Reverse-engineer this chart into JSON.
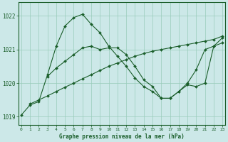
{
  "title": "Graphe pression niveau de la mer (hPa)",
  "background_color": "#cce8e8",
  "plot_bg_color": "#cce8e8",
  "grid_color": "#99ccbb",
  "line_color": "#1a5e2a",
  "marker_color": "#1a5e2a",
  "ylim": [
    1018.75,
    1022.4
  ],
  "xlim": [
    -0.3,
    23.3
  ],
  "yticks": [
    1019,
    1020,
    1021,
    1022
  ],
  "xticks": [
    0,
    1,
    2,
    3,
    4,
    5,
    6,
    7,
    8,
    9,
    10,
    11,
    12,
    13,
    14,
    15,
    16,
    17,
    18,
    19,
    20,
    21,
    22,
    23
  ],
  "series": [
    {
      "x": [
        0,
        1,
        2,
        3,
        4,
        5,
        6,
        7,
        8,
        9,
        10,
        11,
        12,
        13,
        14,
        15,
        16,
        17,
        18,
        19,
        20,
        21,
        22,
        23
      ],
      "y": [
        1019.05,
        1019.35,
        1019.45,
        1020.25,
        1021.1,
        1021.7,
        1021.95,
        1022.05,
        1021.75,
        1021.5,
        1021.1,
        1020.8,
        1020.5,
        1020.15,
        1019.9,
        1019.75,
        1019.55,
        1019.55,
        1019.75,
        1020.0,
        1020.4,
        1021.0,
        1021.1,
        1021.35
      ]
    },
    {
      "x": [
        1,
        2,
        3,
        4,
        5,
        6,
        7,
        8,
        9,
        10,
        11,
        12,
        13,
        14,
        15,
        16,
        17,
        18,
        19,
        20,
        21,
        22,
        23
      ],
      "y": [
        1019.38,
        1019.5,
        1019.62,
        1019.75,
        1019.88,
        1020.0,
        1020.13,
        1020.25,
        1020.38,
        1020.5,
        1020.6,
        1020.7,
        1020.8,
        1020.88,
        1020.95,
        1021.0,
        1021.05,
        1021.1,
        1021.15,
        1021.2,
        1021.25,
        1021.3,
        1021.4
      ]
    },
    {
      "x": [
        3,
        4,
        5,
        6,
        7,
        8,
        9,
        10,
        11,
        12,
        13,
        14,
        15,
        16,
        17,
        18,
        19,
        20,
        21,
        22,
        23
      ],
      "y": [
        1020.2,
        1020.45,
        1020.65,
        1020.85,
        1021.05,
        1021.1,
        1021.0,
        1021.05,
        1021.05,
        1020.85,
        1020.5,
        1020.1,
        1019.9,
        1019.55,
        1019.55,
        1019.75,
        1019.95,
        1019.9,
        1020.0,
        1021.1,
        1021.2
      ]
    }
  ]
}
